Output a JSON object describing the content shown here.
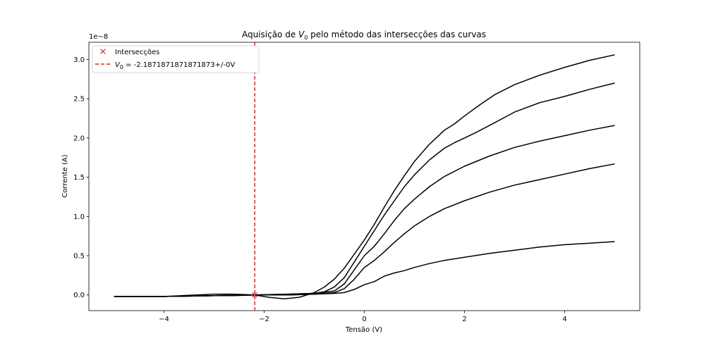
{
  "chart_data": {
    "type": "line",
    "title_prefix": "Aquisição de ",
    "title_symbol": "V",
    "title_subscript": "0",
    "title_suffix": " pelo método das intersecções das curvas",
    "xlabel": "Tensão (V)",
    "ylabel": "Corrente (A)",
    "y_offset_label": "1e−8",
    "xlim": [
      -5.5,
      5.5
    ],
    "ylim": [
      -0.2,
      3.22
    ],
    "x_ticks": [
      -4,
      -2,
      0,
      2,
      4
    ],
    "x_tick_labels": [
      "−4",
      "−2",
      "0",
      "2",
      "4"
    ],
    "y_ticks": [
      0.0,
      0.5,
      1.0,
      1.5,
      2.0,
      2.5,
      3.0
    ],
    "y_tick_labels": [
      "0.0",
      "0.5",
      "1.0",
      "1.5",
      "2.0",
      "2.5",
      "3.0"
    ],
    "grid": false,
    "legend_position": "top-left",
    "legend": {
      "intersections_label": "Intersecções",
      "v0_symbol": "V",
      "v0_subscript": "0",
      "v0_text": " = -2.1871871871871873+/-0V"
    },
    "v0": -2.1871871871871873,
    "intersections": [
      {
        "x": -2.19,
        "y": 0.0
      }
    ],
    "colors": {
      "curves": "#000000",
      "v0_line": "#d62728",
      "marker": "#d62728"
    },
    "series": [
      {
        "x": [
          -5.0,
          -4.0,
          -3.0,
          -2.6,
          -2.4,
          -2.19,
          -1.9,
          -1.6,
          -1.3,
          -1.0,
          -0.8,
          -0.6,
          -0.4,
          -0.2,
          0.0,
          0.2,
          0.4,
          0.6,
          0.8,
          1.0,
          1.3,
          1.6,
          1.8,
          2.0,
          2.3,
          2.6,
          3.0,
          3.5,
          4.0,
          4.5,
          5.0
        ],
        "y": [
          -0.02,
          -0.02,
          -0.01,
          -0.01,
          -0.005,
          0.0,
          -0.03,
          -0.05,
          -0.03,
          0.03,
          0.1,
          0.2,
          0.34,
          0.52,
          0.7,
          0.9,
          1.12,
          1.33,
          1.52,
          1.7,
          1.92,
          2.1,
          2.18,
          2.28,
          2.42,
          2.55,
          2.68,
          2.8,
          2.9,
          2.99,
          3.06
        ]
      },
      {
        "x": [
          -5.0,
          -4.0,
          -3.0,
          -2.6,
          -2.19,
          -1.5,
          -1.0,
          -0.8,
          -0.6,
          -0.4,
          -0.2,
          0.0,
          0.2,
          0.4,
          0.6,
          0.8,
          1.0,
          1.3,
          1.6,
          1.8,
          2.0,
          2.2,
          2.5,
          3.0,
          3.5,
          4.0,
          4.5,
          5.0
        ],
        "y": [
          -0.02,
          -0.02,
          0.01,
          0.01,
          0.0,
          0.01,
          0.02,
          0.04,
          0.1,
          0.22,
          0.42,
          0.62,
          0.82,
          1.02,
          1.2,
          1.38,
          1.53,
          1.72,
          1.87,
          1.94,
          2.0,
          2.06,
          2.16,
          2.33,
          2.45,
          2.53,
          2.62,
          2.7
        ]
      },
      {
        "x": [
          -5.0,
          -4.0,
          -3.0,
          -2.19,
          -1.5,
          -1.0,
          -0.6,
          -0.4,
          -0.2,
          0.0,
          0.2,
          0.4,
          0.6,
          0.8,
          1.0,
          1.3,
          1.6,
          2.0,
          2.5,
          3.0,
          3.5,
          4.0,
          4.5,
          5.0
        ],
        "y": [
          -0.02,
          -0.02,
          -0.01,
          0.0,
          0.01,
          0.02,
          0.05,
          0.14,
          0.32,
          0.5,
          0.62,
          0.78,
          0.95,
          1.1,
          1.22,
          1.38,
          1.51,
          1.64,
          1.77,
          1.88,
          1.96,
          2.03,
          2.1,
          2.16
        ]
      },
      {
        "x": [
          -5.0,
          -4.0,
          -3.0,
          -2.19,
          -1.5,
          -1.0,
          -0.6,
          -0.4,
          -0.2,
          0.0,
          0.2,
          0.4,
          0.6,
          0.8,
          1.0,
          1.3,
          1.6,
          2.0,
          2.5,
          3.0,
          3.5,
          4.0,
          4.5,
          5.0
        ],
        "y": [
          -0.02,
          -0.02,
          -0.01,
          0.0,
          0.0,
          0.01,
          0.03,
          0.08,
          0.2,
          0.35,
          0.44,
          0.55,
          0.67,
          0.78,
          0.88,
          1.0,
          1.1,
          1.2,
          1.31,
          1.4,
          1.47,
          1.54,
          1.61,
          1.67
        ]
      },
      {
        "x": [
          -5.0,
          -4.0,
          -3.0,
          -2.19,
          -1.5,
          -1.0,
          -0.6,
          -0.4,
          -0.2,
          0.0,
          0.2,
          0.4,
          0.6,
          0.8,
          1.0,
          1.3,
          1.6,
          2.0,
          2.5,
          3.0,
          3.5,
          4.0,
          4.5,
          5.0
        ],
        "y": [
          -0.02,
          -0.02,
          -0.01,
          0.0,
          0.0,
          0.01,
          0.02,
          0.03,
          0.07,
          0.13,
          0.17,
          0.24,
          0.28,
          0.31,
          0.35,
          0.4,
          0.44,
          0.48,
          0.53,
          0.57,
          0.61,
          0.64,
          0.66,
          0.68
        ]
      }
    ]
  }
}
